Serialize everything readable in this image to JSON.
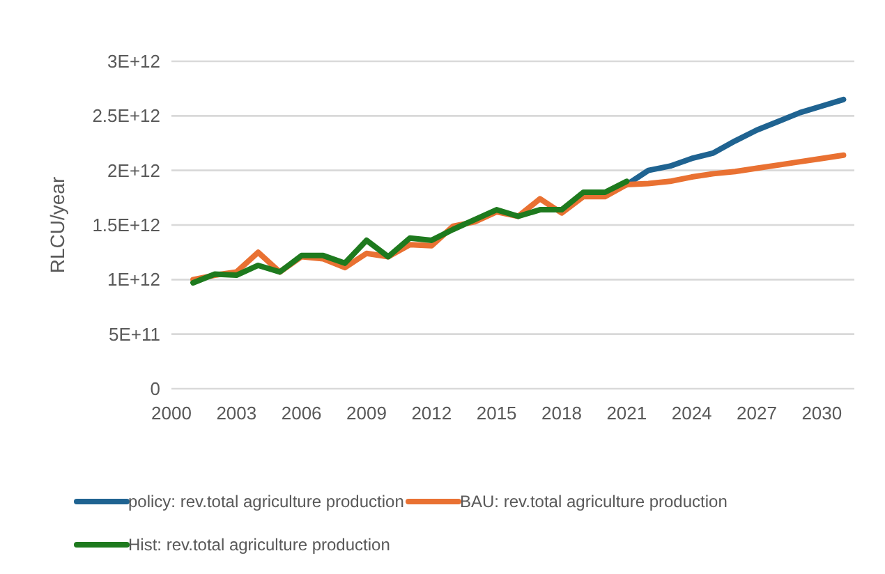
{
  "chart_data": {
    "type": "line",
    "ylabel": "RLCU/year",
    "x": [
      2001,
      2002,
      2003,
      2004,
      2005,
      2006,
      2007,
      2008,
      2009,
      2010,
      2011,
      2012,
      2013,
      2014,
      2015,
      2016,
      2017,
      2018,
      2019,
      2020,
      2021,
      2022,
      2023,
      2024,
      2025,
      2026,
      2027,
      2028,
      2029,
      2030,
      2031
    ],
    "series": [
      {
        "name": "policy: rev.total agriculture production",
        "color": "#1f6391",
        "values": [
          null,
          null,
          null,
          null,
          null,
          null,
          null,
          null,
          null,
          null,
          null,
          null,
          null,
          null,
          null,
          null,
          null,
          null,
          null,
          null,
          1870000000000.0,
          2000000000000.0,
          2040000000000.0,
          2110000000000.0,
          2160000000000.0,
          2270000000000.0,
          2370000000000.0,
          2450000000000.0,
          2530000000000.0,
          2590000000000.0,
          2650000000000.0
        ]
      },
      {
        "name": "BAU: rev.total agriculture production",
        "color": "#e97132",
        "values": [
          1000000000000.0,
          1040000000000.0,
          1070000000000.0,
          1250000000000.0,
          1070000000000.0,
          1210000000000.0,
          1190000000000.0,
          1110000000000.0,
          1240000000000.0,
          1210000000000.0,
          1320000000000.0,
          1310000000000.0,
          1490000000000.0,
          1530000000000.0,
          1620000000000.0,
          1580000000000.0,
          1740000000000.0,
          1610000000000.0,
          1760000000000.0,
          1760000000000.0,
          1870000000000.0,
          1880000000000.0,
          1900000000000.0,
          1940000000000.0,
          1970000000000.0,
          1990000000000.0,
          2020000000000.0,
          2050000000000.0,
          2080000000000.0,
          2110000000000.0,
          2140000000000.0
        ]
      },
      {
        "name": "Hist: rev.total agriculture production",
        "color": "#1e7a1e",
        "values": [
          970000000000.0,
          1050000000000.0,
          1040000000000.0,
          1130000000000.0,
          1070000000000.0,
          1220000000000.0,
          1220000000000.0,
          1150000000000.0,
          1360000000000.0,
          1210000000000.0,
          1380000000000.0,
          1360000000000.0,
          1460000000000.0,
          1550000000000.0,
          1640000000000.0,
          1580000000000.0,
          1640000000000.0,
          1640000000000.0,
          1800000000000.0,
          1800000000000.0,
          1900000000000.0,
          null,
          null,
          null,
          null,
          null,
          null,
          null,
          null,
          null,
          null
        ]
      }
    ],
    "xlim": [
      2000,
      2031.5
    ],
    "xticks": [
      2000,
      2003,
      2006,
      2009,
      2012,
      2015,
      2018,
      2021,
      2024,
      2027,
      2030
    ],
    "ylim": [
      0,
      3000000000000.0
    ],
    "yticks": [
      {
        "value": 0,
        "label": "0"
      },
      {
        "value": 500000000000.0,
        "label": "5E+11"
      },
      {
        "value": 1000000000000.0,
        "label": "1E+12"
      },
      {
        "value": 1500000000000.0,
        "label": "1.5E+12"
      },
      {
        "value": 2000000000000.0,
        "label": "2E+12"
      },
      {
        "value": 2500000000000.0,
        "label": "2.5E+12"
      },
      {
        "value": 3000000000000.0,
        "label": "3E+12"
      }
    ],
    "grid": "y",
    "legend": "bottom",
    "marker": "none",
    "line_style": "solid"
  }
}
